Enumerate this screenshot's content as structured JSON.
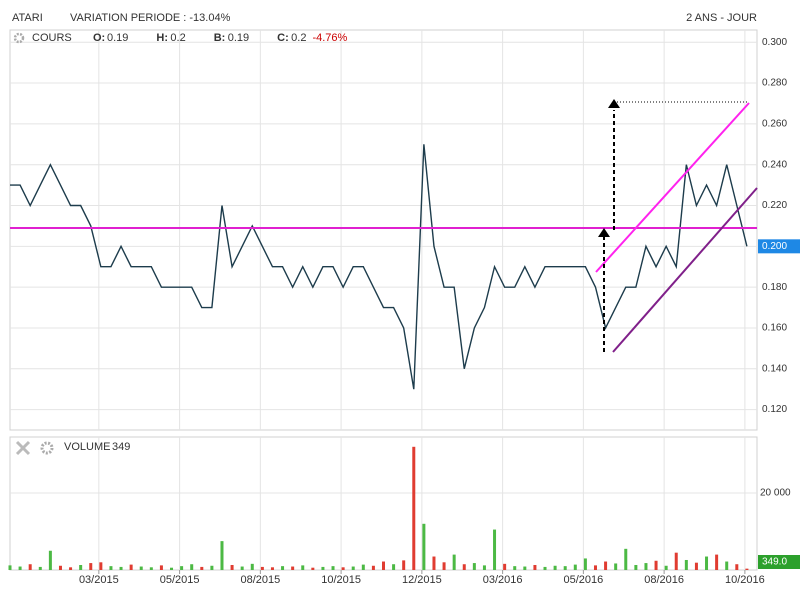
{
  "header": {
    "symbol": "ATARI",
    "variation": "VARIATION PERIODE : -13.04%",
    "period": "2 ANS - JOUR"
  },
  "chart_data": [
    {
      "type": "line",
      "name": "COURS",
      "color": "#1d3c4c",
      "ohlc": [
        {
          "label": "O:",
          "value": 0.19
        },
        {
          "label": "H:",
          "value": 0.2
        },
        {
          "label": "B:",
          "value": 0.19
        },
        {
          "label": "C:",
          "value": 0.2
        }
      ],
      "change": "-4.76%",
      "change_color": "#cc0000",
      "last": {
        "value": 0.2,
        "label": "0.200"
      },
      "last_color": "#1e88e5",
      "x": [
        0,
        5,
        10,
        15,
        20,
        25,
        30,
        35,
        40,
        45,
        50,
        55,
        60,
        65,
        70,
        75,
        80,
        85,
        90,
        95,
        100,
        105,
        110,
        115,
        120,
        125,
        130,
        135,
        140,
        145,
        150,
        155,
        160,
        165,
        170,
        175,
        180,
        185,
        190,
        195,
        200,
        205,
        210,
        215,
        220,
        225,
        230,
        235,
        240,
        245,
        250,
        255,
        260,
        265,
        270,
        275,
        280,
        285,
        290,
        295,
        300,
        305,
        310,
        315,
        320,
        325,
        330,
        335,
        340,
        345,
        350,
        355,
        360,
        365
      ],
      "values": [
        0.23,
        0.23,
        0.22,
        0.23,
        0.24,
        0.23,
        0.22,
        0.22,
        0.21,
        0.19,
        0.19,
        0.2,
        0.19,
        0.19,
        0.19,
        0.18,
        0.18,
        0.18,
        0.18,
        0.17,
        0.17,
        0.22,
        0.19,
        0.2,
        0.21,
        0.2,
        0.19,
        0.19,
        0.18,
        0.19,
        0.18,
        0.19,
        0.19,
        0.18,
        0.19,
        0.19,
        0.18,
        0.17,
        0.17,
        0.16,
        0.13,
        0.25,
        0.2,
        0.18,
        0.18,
        0.14,
        0.16,
        0.17,
        0.19,
        0.18,
        0.18,
        0.19,
        0.18,
        0.19,
        0.19,
        0.19,
        0.19,
        0.19,
        0.18,
        0.16,
        0.17,
        0.18,
        0.18,
        0.2,
        0.19,
        0.2,
        0.19,
        0.24,
        0.22,
        0.23,
        0.22,
        0.24,
        0.22,
        0.2
      ],
      "xlim": [
        0,
        370
      ],
      "xticks": [
        {
          "value": 44,
          "label": "03/2015"
        },
        {
          "value": 84,
          "label": "05/2015"
        },
        {
          "value": 124,
          "label": "08/2015"
        },
        {
          "value": 164,
          "label": "10/2015"
        },
        {
          "value": 204,
          "label": "12/2015"
        },
        {
          "value": 244,
          "label": "03/2016"
        },
        {
          "value": 284,
          "label": "05/2016"
        },
        {
          "value": 324,
          "label": "08/2016"
        },
        {
          "value": 364,
          "label": "10/2016"
        }
      ],
      "ylim": [
        0.11,
        0.306
      ],
      "yticks": [
        {
          "value": 0.12,
          "label": "0.120"
        },
        {
          "value": 0.14,
          "label": "0.140"
        },
        {
          "value": 0.16,
          "label": "0.160"
        },
        {
          "value": 0.18,
          "label": "0.180"
        },
        {
          "value": 0.2,
          "label": "0.200"
        },
        {
          "value": 0.22,
          "label": "0.220"
        },
        {
          "value": 0.24,
          "label": "0.240"
        },
        {
          "value": 0.26,
          "label": "0.260"
        },
        {
          "value": 0.28,
          "label": "0.280"
        },
        {
          "value": 0.3,
          "label": "0.300"
        }
      ],
      "grid": true
    },
    {
      "type": "bar",
      "name": "VOLUME",
      "current": 349,
      "last": {
        "value": 349,
        "label": "349.0"
      },
      "last_color": "#2ca02c",
      "up_color": "#4cb944",
      "down_color": "#e03c31",
      "x": [
        0,
        5,
        10,
        15,
        20,
        25,
        30,
        35,
        40,
        45,
        50,
        55,
        60,
        65,
        70,
        75,
        80,
        85,
        90,
        95,
        100,
        105,
        110,
        115,
        120,
        125,
        130,
        135,
        140,
        145,
        150,
        155,
        160,
        165,
        170,
        175,
        180,
        185,
        190,
        195,
        200,
        205,
        210,
        215,
        220,
        225,
        230,
        235,
        240,
        245,
        250,
        255,
        260,
        265,
        270,
        275,
        280,
        285,
        290,
        295,
        300,
        305,
        310,
        315,
        320,
        325,
        330,
        335,
        340,
        345,
        350,
        355,
        360,
        365
      ],
      "values": [
        1200,
        900,
        1500,
        800,
        5000,
        1100,
        700,
        1300,
        1800,
        2000,
        1000,
        800,
        1400,
        900,
        700,
        1200,
        600,
        1000,
        1500,
        800,
        1100,
        7500,
        1300,
        900,
        1600,
        800,
        700,
        1000,
        900,
        1200,
        600,
        800,
        1000,
        700,
        900,
        1400,
        1100,
        2200,
        1500,
        2500,
        32000,
        12000,
        3500,
        2000,
        4000,
        1500,
        1800,
        1200,
        10500,
        1600,
        1000,
        900,
        1300,
        800,
        1100,
        1000,
        1400,
        3000,
        1200,
        2200,
        1700,
        5500,
        1300,
        1800,
        2400,
        1100,
        4500,
        2600,
        1900,
        3500,
        4000,
        2200,
        1500,
        349
      ],
      "ylim": [
        0,
        34545
      ],
      "yticks": [
        {
          "value": 20000,
          "label": "20 000"
        }
      ],
      "grid": true
    }
  ]
}
